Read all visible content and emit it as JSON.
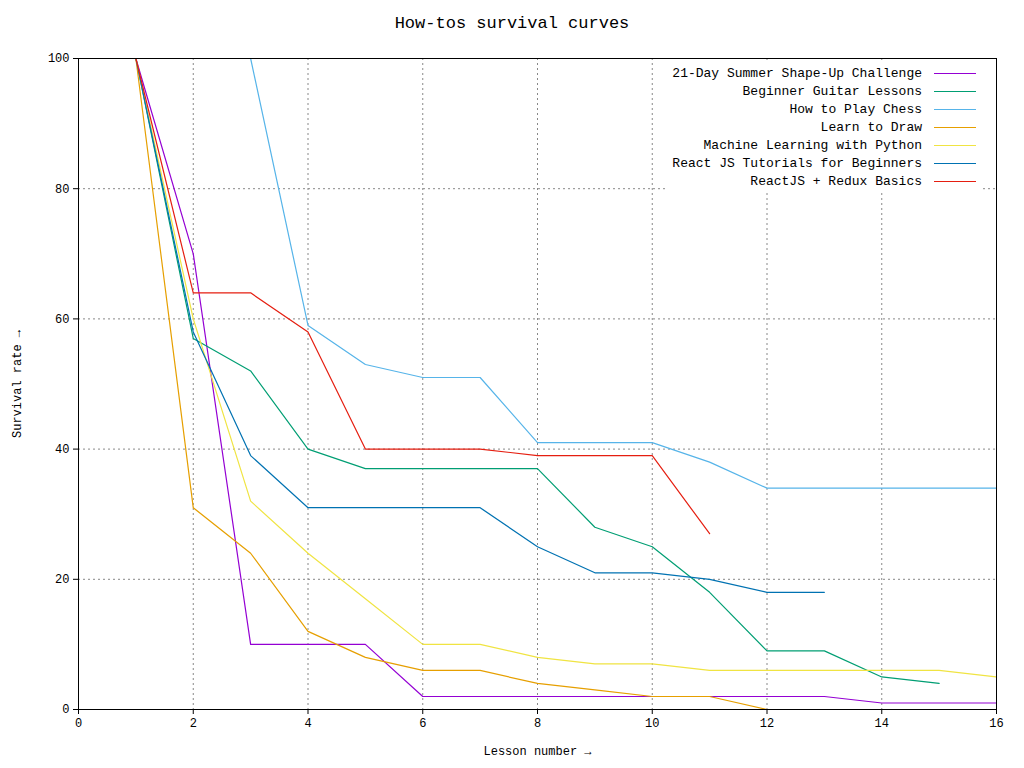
{
  "chart_data": {
    "type": "line",
    "title": "How-tos survival curves",
    "xlabel": "Lesson number",
    "ylabel": "Survival rate",
    "x": [
      1,
      2,
      3,
      4,
      5,
      6,
      7,
      8,
      9,
      10,
      11,
      12,
      13,
      14,
      15,
      16
    ],
    "series": [
      {
        "name": "21-Day Summer Shape-Up Challenge",
        "color": "#9400d3",
        "values": [
          100,
          70,
          10,
          10,
          10,
          2,
          2,
          2,
          2,
          2,
          2,
          2,
          2,
          1,
          1,
          1
        ]
      },
      {
        "name": "Beginner Guitar Lessons",
        "color": "#009e73",
        "values": [
          100,
          57,
          52,
          40,
          37,
          37,
          37,
          37,
          28,
          25,
          18,
          9,
          9,
          5,
          4,
          null
        ]
      },
      {
        "name": "How to Play Chess",
        "color": "#56b4e9",
        "values": [
          100,
          100,
          100,
          59,
          53,
          51,
          51,
          41,
          41,
          41,
          38,
          34,
          34,
          34,
          34,
          34
        ]
      },
      {
        "name": "Learn to Draw",
        "color": "#e69f00",
        "values": [
          100,
          31,
          24,
          12,
          8,
          6,
          6,
          4,
          3,
          2,
          2,
          0,
          null,
          null,
          null,
          null
        ]
      },
      {
        "name": "Machine Learning with Python",
        "color": "#f0e442",
        "values": [
          100,
          60,
          32,
          24,
          17,
          10,
          10,
          8,
          7,
          7,
          6,
          6,
          6,
          6,
          6,
          5
        ]
      },
      {
        "name": "React JS Tutorials for Beginners",
        "color": "#0072b2",
        "values": [
          100,
          58,
          39,
          31,
          31,
          31,
          31,
          25,
          21,
          21,
          20,
          18,
          18,
          null,
          null,
          null
        ]
      },
      {
        "name": "ReactJS + Redux Basics",
        "color": "#e51e10",
        "values": [
          100,
          64,
          64,
          58,
          40,
          40,
          40,
          39,
          39,
          39,
          27,
          null,
          null,
          null,
          null,
          null
        ]
      }
    ],
    "xlim": [
      0,
      16
    ],
    "xticks": [
      0,
      2,
      4,
      6,
      8,
      10,
      12,
      14,
      16
    ],
    "ylim": [
      0,
      100
    ],
    "yticks": [
      0,
      20,
      40,
      60,
      80,
      100
    ],
    "grid": true,
    "legend": "top-right"
  }
}
